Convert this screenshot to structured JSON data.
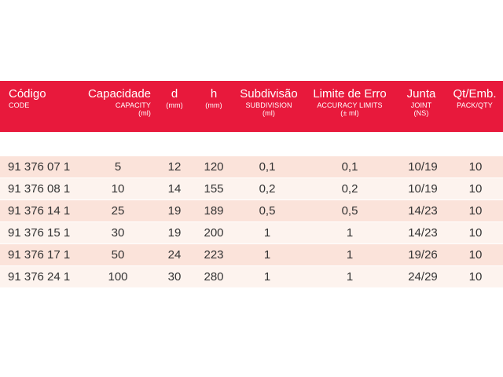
{
  "columns": [
    {
      "main": "Código",
      "sub": "CODE",
      "sub2": ""
    },
    {
      "main": "Capacidade",
      "sub": "CAPACITY",
      "sub2": "(ml)"
    },
    {
      "main": "d",
      "sub": "(mm)",
      "sub2": ""
    },
    {
      "main": "h",
      "sub": "(mm)",
      "sub2": ""
    },
    {
      "main": "Subdivisão",
      "sub": "SUBDIVISION",
      "sub2": "(ml)"
    },
    {
      "main": "Limite de Erro",
      "sub": "ACCURACY LIMITS",
      "sub2": "(± ml)"
    },
    {
      "main": "Junta",
      "sub": "JOINT",
      "sub2": "(NS)"
    },
    {
      "main": "Qt/Emb.",
      "sub": "PACK/QTY",
      "sub2": ""
    }
  ],
  "rows": [
    [
      "91 376 07 1",
      "5",
      "12",
      "120",
      "0,1",
      "0,1",
      "10/19",
      "10"
    ],
    [
      "91 376 08 1",
      "10",
      "14",
      "155",
      "0,2",
      "0,2",
      "10/19",
      "10"
    ],
    [
      "91 376 14 1",
      "25",
      "19",
      "189",
      "0,5",
      "0,5",
      "14/23",
      "10"
    ],
    [
      "91 376 15 1",
      "30",
      "19",
      "200",
      "1",
      "1",
      "14/23",
      "10"
    ],
    [
      "91 376 17 1",
      "50",
      "24",
      "223",
      "1",
      "1",
      "19/26",
      "10"
    ],
    [
      "91 376 24 1",
      "100",
      "30",
      "280",
      "1",
      "1",
      "24/29",
      "10"
    ]
  ],
  "colors": {
    "header": "#e8193c",
    "row_shaded": "#fbe3da",
    "row_plain": "#fdf3ee"
  }
}
